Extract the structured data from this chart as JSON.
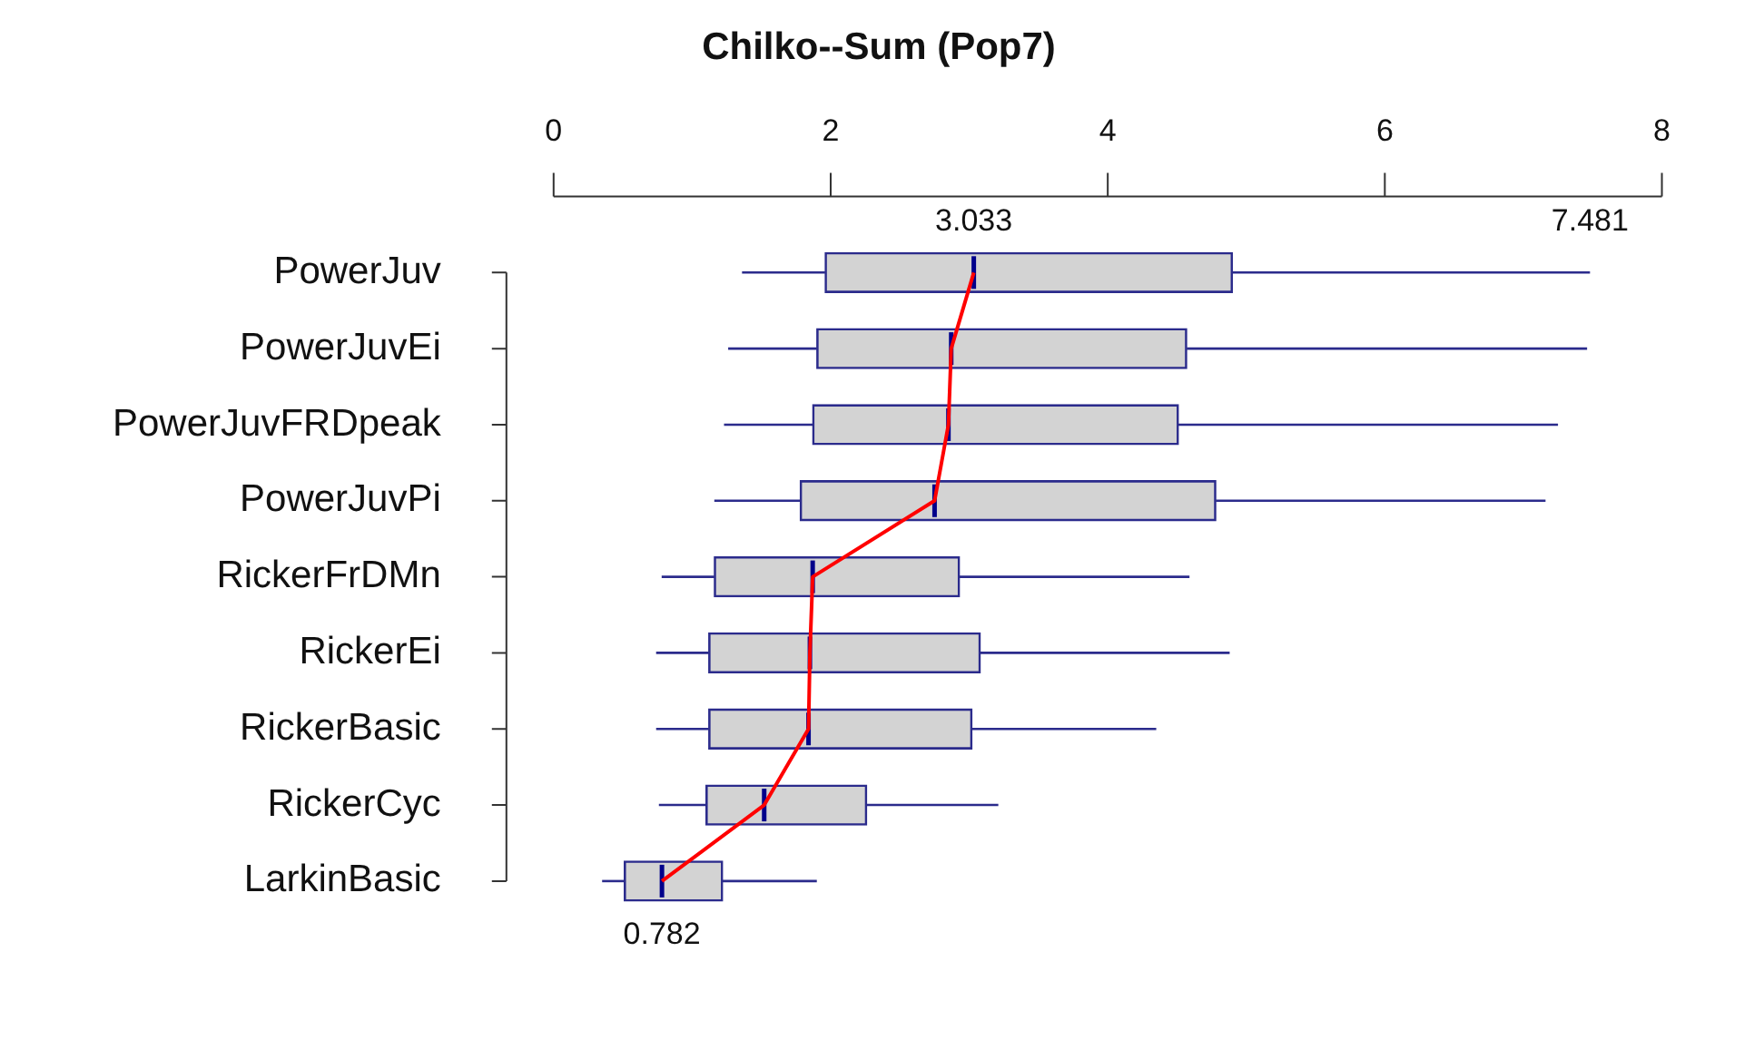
{
  "chart_data": {
    "type": "box",
    "orientation": "horizontal",
    "title": "Chilko--Sum (Pop7)",
    "categories": [
      "PowerJuv",
      "PowerJuvEi",
      "PowerJuvFRDpeak",
      "PowerJuvPi",
      "RickerFrDMn",
      "RickerEi",
      "RickerBasic",
      "RickerCyc",
      "LarkinBasic"
    ],
    "xlim": [
      0,
      8
    ],
    "xticks": [
      0,
      2,
      4,
      6,
      8
    ],
    "marker": "none",
    "series": [
      {
        "color": "#2b2b8c",
        "boxes": [
          {
            "low": 1.36,
            "q1": 1.96,
            "median": 3.033,
            "q3": 4.9,
            "high": 7.481
          },
          {
            "low": 1.26,
            "q1": 1.9,
            "median": 2.87,
            "q3": 4.57,
            "high": 7.46
          },
          {
            "low": 1.23,
            "q1": 1.87,
            "median": 2.85,
            "q3": 4.51,
            "high": 7.25
          },
          {
            "low": 1.16,
            "q1": 1.78,
            "median": 2.75,
            "q3": 4.78,
            "high": 7.16
          },
          {
            "low": 0.78,
            "q1": 1.16,
            "median": 1.87,
            "q3": 2.93,
            "high": 4.59
          },
          {
            "low": 0.74,
            "q1": 1.12,
            "median": 1.85,
            "q3": 3.08,
            "high": 4.88
          },
          {
            "low": 0.74,
            "q1": 1.12,
            "median": 1.84,
            "q3": 3.02,
            "high": 4.35
          },
          {
            "low": 0.76,
            "q1": 1.1,
            "median": 1.52,
            "q3": 2.26,
            "high": 3.21
          },
          {
            "low": 0.35,
            "q1": 0.51,
            "median": 0.782,
            "q3": 1.22,
            "high": 1.9
          }
        ]
      },
      {
        "type": "line",
        "color": "#ff0000",
        "values": [
          3.033,
          2.87,
          2.85,
          2.75,
          1.87,
          1.85,
          1.84,
          1.52,
          0.782
        ]
      }
    ],
    "annotations": [
      {
        "text": "3.033",
        "x": 3.033,
        "y": "PowerJuv"
      },
      {
        "text": "7.481",
        "x": 7.481,
        "y": "PowerJuv"
      },
      {
        "text": "0.782",
        "x": 0.782,
        "y": "LarkinBasic"
      }
    ]
  }
}
